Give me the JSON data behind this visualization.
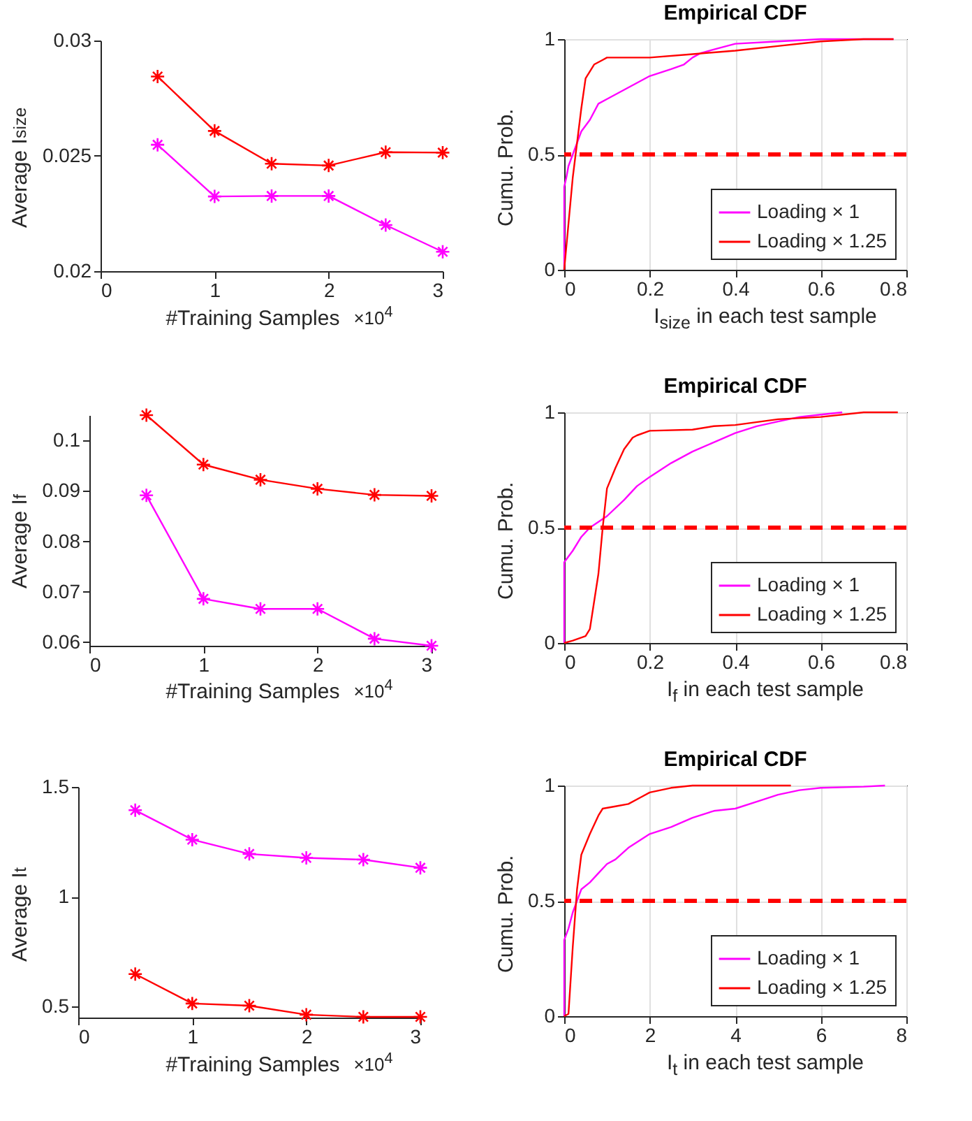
{
  "chart_data": [
    {
      "type": "line",
      "ylabel": "Average I$_{size}$",
      "xlabel": "#Training Samples",
      "annotations": [
        "×10$^{4}$"
      ],
      "marker": "cross",
      "x": [
        0.5,
        1,
        1.5,
        2,
        2.5,
        3
      ],
      "xlim": [
        0,
        3
      ],
      "xticks": [
        0,
        1,
        2,
        3
      ],
      "ylim": [
        0.02,
        0.03
      ],
      "yticks": [
        0.02,
        0.025,
        0.03
      ],
      "series": [
        {
          "color": "#ff0000",
          "values": [
            0.02844,
            0.02608,
            0.02466,
            0.02458,
            0.02516,
            0.02514
          ]
        },
        {
          "color": "#ff00ff",
          "values": [
            0.02548,
            0.02324,
            0.02326,
            0.02326,
            0.022,
            0.02084
          ]
        }
      ]
    },
    {
      "type": "line",
      "title": "Empirical CDF",
      "ylabel": "Cumu. Prob.",
      "xlabel": "I$_{size}$ in each test sample",
      "grid": true,
      "legend": "bottom right",
      "xlim": [
        0,
        0.8
      ],
      "xticks": [
        0,
        0.2,
        0.4,
        0.6,
        0.8
      ],
      "ylim": [
        0,
        1
      ],
      "yticks": [
        0,
        0.5,
        1
      ],
      "ref_lines": [
        {
          "axis": "y",
          "value": 0.5,
          "color": "#ff0000",
          "line_style": "dashed"
        }
      ],
      "series": [
        {
          "name": "Loading × 1",
          "color": "#ff00ff",
          "x": [
            0,
            0,
            0.005,
            0.01,
            0.02,
            0.03,
            0.04,
            0.06,
            0.08,
            0.1,
            0.15,
            0.2,
            0.25,
            0.28,
            0.3,
            0.32,
            0.36,
            0.4,
            0.5,
            0.6,
            0.77
          ],
          "values": [
            0,
            0.36,
            0.4,
            0.45,
            0.5,
            0.55,
            0.6,
            0.65,
            0.72,
            0.74,
            0.79,
            0.84,
            0.87,
            0.89,
            0.92,
            0.94,
            0.96,
            0.98,
            0.99,
            1.0,
            1.0
          ]
        },
        {
          "name": "Loading × 1.25",
          "color": "#ff0000",
          "x": [
            0,
            0.01,
            0.02,
            0.03,
            0.04,
            0.05,
            0.07,
            0.09,
            0.1,
            0.2,
            0.3,
            0.4,
            0.5,
            0.6,
            0.7,
            0.77
          ],
          "values": [
            0,
            0.2,
            0.4,
            0.55,
            0.7,
            0.83,
            0.89,
            0.91,
            0.92,
            0.92,
            0.935,
            0.95,
            0.97,
            0.99,
            1.0,
            1.0
          ]
        }
      ]
    },
    {
      "type": "line",
      "ylabel": "Average I$_{f}$",
      "xlabel": "#Training Samples",
      "annotations": [
        "×10$^{4}$"
      ],
      "marker": "cross",
      "x": [
        0.5,
        1,
        1.5,
        2,
        2.5,
        3
      ],
      "xlim": [
        0,
        3
      ],
      "xticks": [
        0,
        1,
        2,
        3
      ],
      "ylim": [
        0.0593,
        0.105
      ],
      "yticks": [
        0.06,
        0.07,
        0.08,
        0.09,
        0.1
      ],
      "series": [
        {
          "color": "#ff0000",
          "values": [
            0.105,
            0.0952,
            0.0922,
            0.0904,
            0.0892,
            0.089
          ]
        },
        {
          "color": "#ff00ff",
          "values": [
            0.0891,
            0.0686,
            0.0666,
            0.0666,
            0.0607,
            0.0593
          ]
        }
      ]
    },
    {
      "type": "line",
      "title": "Empirical CDF",
      "ylabel": "Cumu. Prob.",
      "xlabel": "I$_{f}$ in each test sample",
      "grid": true,
      "legend": "bottom right",
      "xlim": [
        0,
        0.8
      ],
      "xticks": [
        0,
        0.2,
        0.4,
        0.6,
        0.8
      ],
      "ylim": [
        0,
        1
      ],
      "yticks": [
        0,
        0.5,
        1
      ],
      "ref_lines": [
        {
          "axis": "y",
          "value": 0.5,
          "color": "#ff0000",
          "line_style": "dashed"
        }
      ],
      "series": [
        {
          "name": "Loading × 1",
          "color": "#ff00ff",
          "x": [
            0,
            0,
            0.02,
            0.04,
            0.06,
            0.1,
            0.14,
            0.17,
            0.2,
            0.25,
            0.3,
            0.35,
            0.4,
            0.45,
            0.5,
            0.55,
            0.6,
            0.65
          ],
          "values": [
            0,
            0.35,
            0.4,
            0.46,
            0.5,
            0.55,
            0.62,
            0.68,
            0.72,
            0.78,
            0.83,
            0.87,
            0.91,
            0.94,
            0.96,
            0.98,
            0.99,
            1.0
          ]
        },
        {
          "name": "Loading × 1.25",
          "color": "#ff0000",
          "x": [
            0,
            0.02,
            0.05,
            0.06,
            0.08,
            0.09,
            0.1,
            0.12,
            0.14,
            0.16,
            0.17,
            0.2,
            0.3,
            0.35,
            0.4,
            0.5,
            0.6,
            0.7,
            0.78
          ],
          "values": [
            0,
            0.01,
            0.03,
            0.06,
            0.3,
            0.5,
            0.67,
            0.76,
            0.84,
            0.89,
            0.9,
            0.92,
            0.925,
            0.94,
            0.945,
            0.97,
            0.98,
            1.0,
            1.0
          ]
        }
      ]
    },
    {
      "type": "line",
      "ylabel": "Average I$_{t}$",
      "xlabel": "#Training Samples",
      "annotations": [
        "×10$^{4}$"
      ],
      "marker": "cross",
      "x": [
        0.5,
        1,
        1.5,
        2,
        2.5,
        3
      ],
      "xlim": [
        0,
        3
      ],
      "xticks": [
        0,
        1,
        2,
        3
      ],
      "ylim": [
        0.45,
        1.5
      ],
      "yticks": [
        0.5,
        1,
        1.5
      ],
      "series": [
        {
          "color": "#ff00ff",
          "values": [
            1.394,
            1.26,
            1.195,
            1.177,
            1.169,
            1.132
          ]
        },
        {
          "color": "#ff0000",
          "values": [
            0.648,
            0.514,
            0.504,
            0.463,
            0.453,
            0.453
          ]
        }
      ]
    },
    {
      "type": "line",
      "title": "Empirical CDF",
      "ylabel": "Cumu. Prob.",
      "xlabel": "I$_{t}$ in each test sample",
      "grid": true,
      "legend": "bottom right",
      "xlim": [
        0,
        8
      ],
      "xticks": [
        0,
        2,
        4,
        6,
        8
      ],
      "ylim": [
        0,
        1
      ],
      "yticks": [
        0,
        0.5,
        1
      ],
      "ref_lines": [
        {
          "axis": "y",
          "value": 0.5,
          "color": "#ff0000",
          "line_style": "dashed"
        }
      ],
      "series": [
        {
          "name": "Loading × 1",
          "color": "#ff00ff",
          "x": [
            0,
            0,
            0.1,
            0.2,
            0.4,
            0.6,
            0.8,
            1,
            1.2,
            1.5,
            2,
            2.5,
            3,
            3.5,
            4,
            4.5,
            5,
            5.5,
            6,
            7,
            7.5
          ],
          "values": [
            0,
            0.33,
            0.38,
            0.45,
            0.55,
            0.58,
            0.62,
            0.66,
            0.68,
            0.73,
            0.79,
            0.82,
            0.86,
            0.89,
            0.9,
            0.93,
            0.96,
            0.98,
            0.99,
            0.995,
            1.0
          ]
        },
        {
          "name": "Loading × 1.25",
          "color": "#ff0000",
          "x": [
            0,
            0.1,
            0.2,
            0.3,
            0.4,
            0.6,
            0.8,
            0.9,
            1.2,
            1.5,
            1.8,
            2,
            2.5,
            3,
            5.3
          ],
          "values": [
            0,
            0.01,
            0.3,
            0.55,
            0.7,
            0.79,
            0.87,
            0.9,
            0.91,
            0.92,
            0.95,
            0.97,
            0.99,
            1.0,
            1.0
          ]
        }
      ]
    }
  ]
}
